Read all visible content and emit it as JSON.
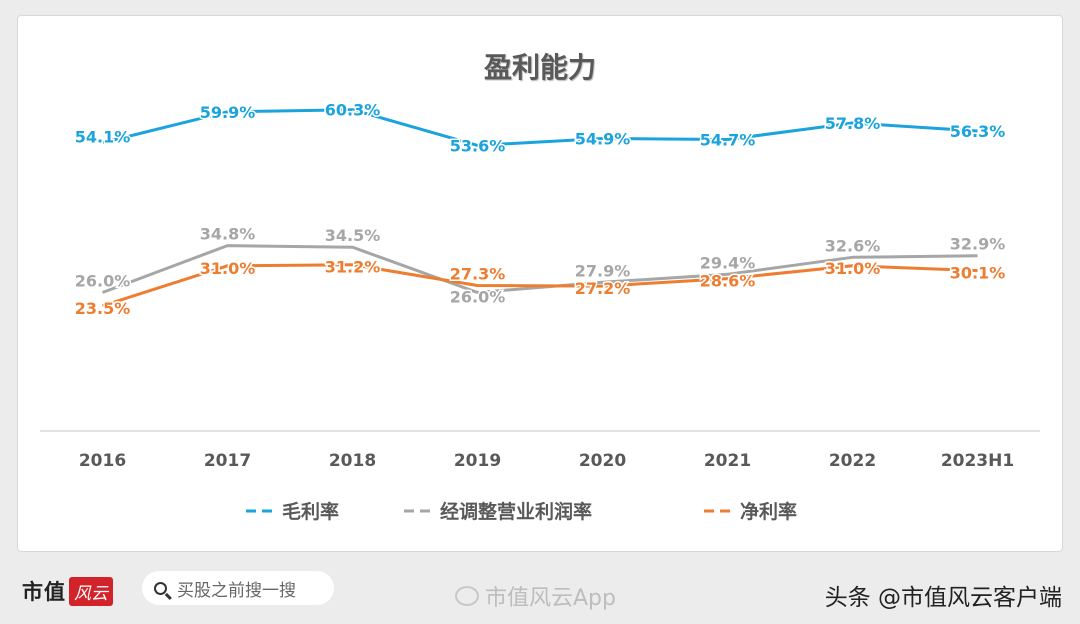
{
  "chart_data": {
    "type": "line",
    "title": "盈利能力",
    "categories": [
      "2016",
      "2017",
      "2018",
      "2019",
      "2020",
      "2021",
      "2022",
      "2023H1"
    ],
    "series": [
      {
        "name": "毛利率",
        "color": "#1aa3dc",
        "values": [
          54.1,
          59.9,
          60.3,
          53.6,
          54.9,
          54.7,
          57.8,
          56.3
        ],
        "labels": [
          "54.1%",
          "59.9%",
          "60.3%",
          "53.6%",
          "54.9%",
          "54.7%",
          "57.8%",
          "56.3%"
        ]
      },
      {
        "name": "经调整营业利润率",
        "color": "#a6a6a6",
        "values": [
          26.0,
          34.8,
          34.5,
          26.0,
          27.9,
          29.4,
          32.6,
          32.9
        ],
        "labels": [
          "26.0%",
          "34.8%",
          "34.5%",
          "26.0%",
          "27.9%",
          "29.4%",
          "32.6%",
          "32.9%"
        ]
      },
      {
        "name": "净利率",
        "color": "#ed7d31",
        "values": [
          23.5,
          31.0,
          31.2,
          27.3,
          27.2,
          28.6,
          31.0,
          30.1
        ],
        "labels": [
          "23.5%",
          "31.0%",
          "31.2%",
          "27.3%",
          "27.2%",
          "28.6%",
          "31.0%",
          "30.1%"
        ]
      }
    ],
    "ylim": [
      0,
      70
    ],
    "legend_position": "bottom",
    "grid": false
  },
  "footer": {
    "logo_text": "市值",
    "logo_mark": "风云",
    "search_placeholder": "买股之前搜一搜",
    "weibo_text": "市值风云App",
    "attribution": "头条 @市值风云客户端"
  }
}
